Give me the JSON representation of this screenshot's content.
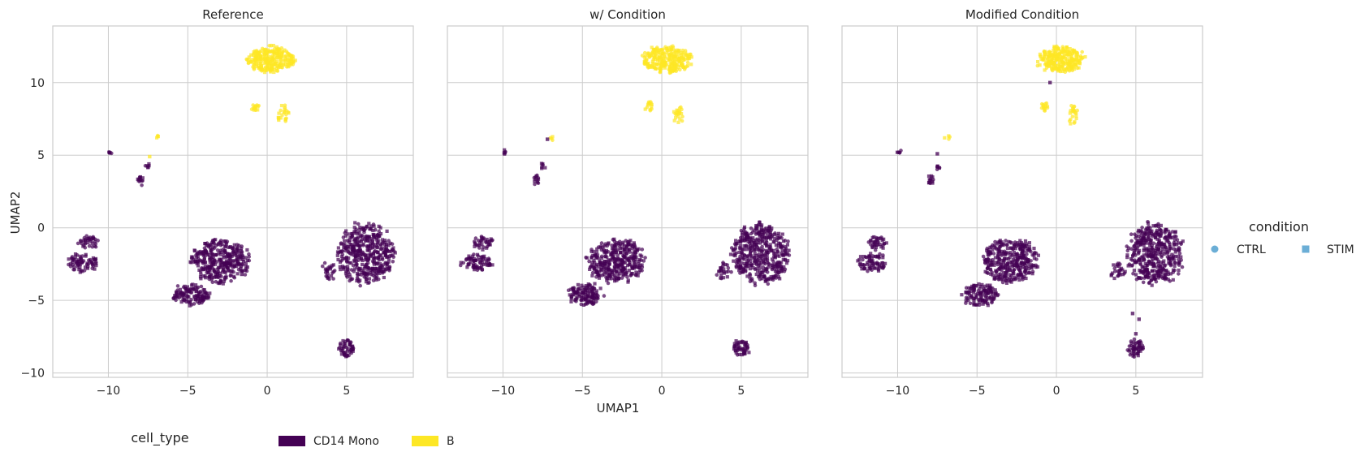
{
  "chart_data": {
    "type": "scatter",
    "xlabel": "UMAP1",
    "ylabel": "UMAP2",
    "xlim": [
      -13.5,
      9.2
    ],
    "ylim": [
      -10.3,
      13.9
    ],
    "xticks": [
      -10,
      -5,
      0,
      5
    ],
    "yticks": [
      -10,
      -5,
      0,
      5,
      10
    ],
    "x_tick_labels": [
      "−10",
      "−5",
      "0",
      "5"
    ],
    "y_tick_labels": [
      "−10",
      "−5",
      "0",
      "5",
      "10"
    ],
    "grid": true,
    "colors": {
      "CD14 Mono": "#440154",
      "B": "#fde725",
      "legend_marker": "#6baed6"
    },
    "panels": [
      {
        "title": "Reference",
        "stray_points": [
          [
            -7.4,
            4.9
          ],
          [
            -2.7,
            -1.7
          ],
          [
            -1.6,
            -3.2
          ]
        ]
      },
      {
        "title": "w/ Condition",
        "stray_points": [
          [
            -7.2,
            6.1
          ],
          [
            -2.5,
            -2.6
          ]
        ]
      },
      {
        "title": "Modified Condition",
        "stray_points": [
          [
            -7.5,
            5.1
          ],
          [
            4.8,
            -5.9
          ],
          [
            5.2,
            -6.3
          ],
          [
            5.0,
            -7.3
          ],
          [
            -0.4,
            10.0
          ]
        ]
      }
    ],
    "clusters": [
      {
        "type": "B",
        "cx": 0.3,
        "cy": 11.6,
        "rx": 1.5,
        "ry": 0.9,
        "n": 260
      },
      {
        "type": "B",
        "cx": -0.8,
        "cy": 8.3,
        "rx": 0.25,
        "ry": 0.3,
        "n": 14
      },
      {
        "type": "B",
        "cx": 1.0,
        "cy": 7.8,
        "rx": 0.3,
        "ry": 0.8,
        "n": 22
      },
      {
        "type": "B",
        "cx": -6.9,
        "cy": 6.2,
        "rx": 0.15,
        "ry": 0.1,
        "n": 4
      },
      {
        "type": "CD14 Mono",
        "cx": -9.9,
        "cy": 5.2,
        "rx": 0.15,
        "ry": 0.1,
        "n": 5
      },
      {
        "type": "CD14 Mono",
        "cx": -7.9,
        "cy": 3.3,
        "rx": 0.2,
        "ry": 0.35,
        "n": 12
      },
      {
        "type": "CD14 Mono",
        "cx": -7.5,
        "cy": 4.3,
        "rx": 0.2,
        "ry": 0.2,
        "n": 6
      },
      {
        "type": "CD14 Mono",
        "cx": -11.3,
        "cy": -1.0,
        "rx": 0.6,
        "ry": 0.45,
        "n": 35
      },
      {
        "type": "CD14 Mono",
        "cx": -11.6,
        "cy": -2.4,
        "rx": 1.0,
        "ry": 0.6,
        "n": 70
      },
      {
        "type": "CD14 Mono",
        "cx": -2.9,
        "cy": -2.3,
        "rx": 1.8,
        "ry": 1.5,
        "n": 340
      },
      {
        "type": "CD14 Mono",
        "cx": -4.8,
        "cy": -4.6,
        "rx": 1.1,
        "ry": 0.75,
        "n": 120
      },
      {
        "type": "CD14 Mono",
        "cx": 6.2,
        "cy": -1.8,
        "rx": 1.8,
        "ry": 2.1,
        "n": 420
      },
      {
        "type": "CD14 Mono",
        "cx": 3.9,
        "cy": -3.0,
        "rx": 0.5,
        "ry": 0.6,
        "n": 25
      },
      {
        "type": "CD14 Mono",
        "cx": 5.0,
        "cy": -8.3,
        "rx": 0.5,
        "ry": 0.6,
        "n": 50
      }
    ]
  },
  "legend_condition": {
    "title": "condition",
    "items": [
      {
        "label": "CTRL",
        "marker": "circle"
      },
      {
        "label": "STIM",
        "marker": "square"
      }
    ]
  },
  "legend_cell_type": {
    "title": "cell_type",
    "items": [
      {
        "label": "CD14 Mono"
      },
      {
        "label": "B"
      }
    ]
  }
}
